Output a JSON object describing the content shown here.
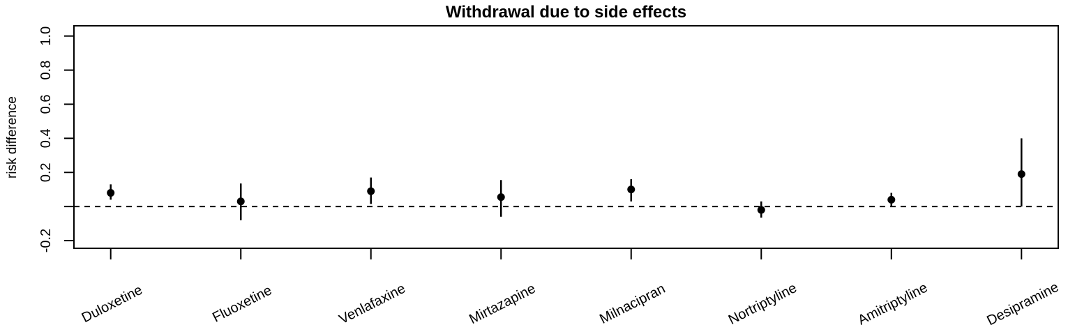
{
  "chart_data": {
    "type": "scatter",
    "title": "Withdrawal due to side effects",
    "ylabel": "risk difference",
    "xlabel": "",
    "categories": [
      "Duloxetine",
      "Fluoxetine",
      "Venlafaxine",
      "Mirtazapine",
      "Milnacipran",
      "Nortriptyline",
      "Amitriptyline",
      "Desipramine"
    ],
    "series": [
      {
        "name": "risk difference",
        "values": [
          0.08,
          0.03,
          0.09,
          0.055,
          0.1,
          -0.02,
          0.04,
          0.19
        ],
        "ci_lower": [
          0.04,
          -0.08,
          0.015,
          -0.06,
          0.03,
          -0.065,
          0.0,
          0.0
        ],
        "ci_upper": [
          0.13,
          0.135,
          0.17,
          0.155,
          0.16,
          0.03,
          0.08,
          0.4
        ]
      }
    ],
    "reference_line": {
      "value": 0,
      "style": "dashed"
    },
    "ylim": [
      -0.245,
      1.06
    ],
    "yticks": [
      {
        "value": 1.0,
        "label": "1.0"
      },
      {
        "value": 0.8,
        "label": "0.8"
      },
      {
        "value": 0.6,
        "label": "0.6"
      },
      {
        "value": 0.4,
        "label": "0.4"
      },
      {
        "value": 0.2,
        "label": "0.2"
      },
      {
        "value": 0.0,
        "label": ""
      },
      {
        "value": -0.2,
        "label": "-0.2"
      }
    ],
    "grid": false,
    "legend": false,
    "marker": "filled-circle",
    "colors": {
      "foreground": "#000000",
      "background": "#ffffff"
    }
  }
}
